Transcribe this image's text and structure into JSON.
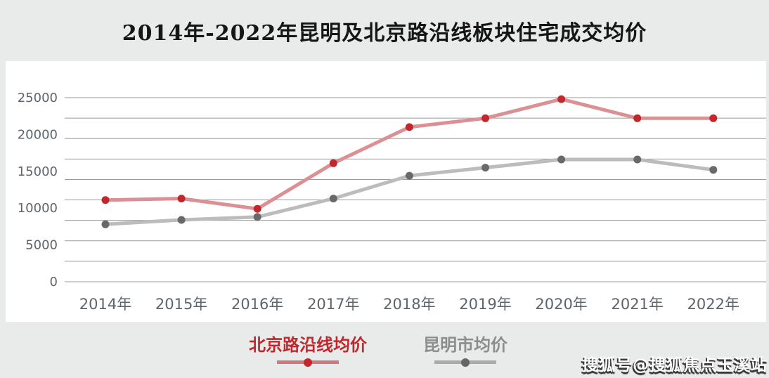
{
  "header": {
    "title": "2014年-2022年昆明及北京路沿线板块住宅成交均价"
  },
  "chart_data": {
    "type": "line",
    "title": "2014年-2022年昆明及北京路沿线板块住宅成交均价",
    "categories": [
      "2014年",
      "2015年",
      "2016年",
      "2017年",
      "2018年",
      "2019年",
      "2020年",
      "2021年",
      "2022年"
    ],
    "series": [
      {
        "name": "北京路沿线均价",
        "values": [
          11100,
          11300,
          9900,
          16100,
          21000,
          22200,
          24800,
          22200,
          22200
        ],
        "line_color": "#db9093",
        "dot_color": "#c1272d"
      },
      {
        "name": "昆明市均价",
        "values": [
          7800,
          8400,
          8800,
          11300,
          14400,
          15500,
          16600,
          16600,
          15200
        ],
        "line_color": "#bcbcbc",
        "dot_color": "#696969"
      }
    ],
    "xlabel": "",
    "ylabel": "",
    "ylim": [
      0,
      25000
    ],
    "yticks": [
      0,
      5000,
      10000,
      15000,
      20000,
      25000
    ],
    "gridline_count": 10,
    "grid": true,
    "legend_position": "bottom",
    "gridline_color": "#9b9b9b",
    "tick_label_color": "#5d646b"
  },
  "watermark": {
    "text": "搜狐号@搜狐焦点玉溪站"
  }
}
